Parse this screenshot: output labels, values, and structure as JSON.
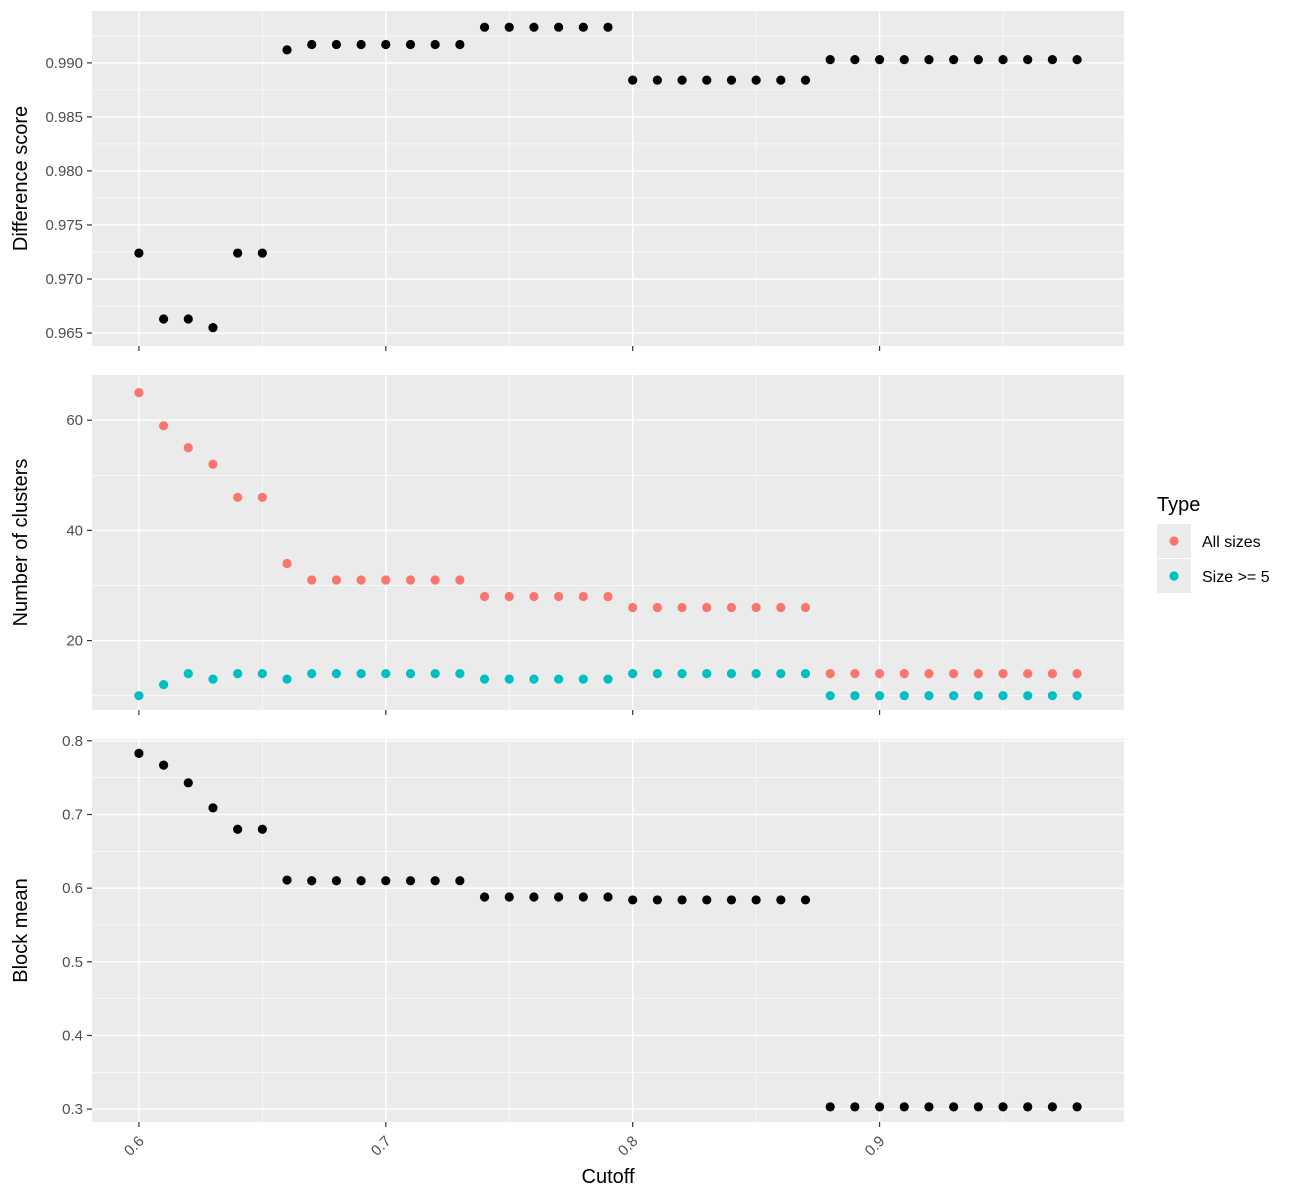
{
  "chart_data": {
    "type": "scatter",
    "x_label": "Cutoff",
    "x_ticks": [
      "0.6",
      "0.7",
      "0.8",
      "0.9"
    ],
    "xlim": [
      0.581,
      0.999
    ],
    "legend": {
      "title": "Type",
      "placement": "right",
      "entries": [
        {
          "label": "All sizes",
          "color": "#F8766D"
        },
        {
          "label": "Size >= 5",
          "color": "#00BFC4"
        }
      ]
    },
    "panels": [
      {
        "ylabel": "Difference score",
        "ylim": [
          0.9638,
          0.9948
        ],
        "y_ticks": [
          0.965,
          0.97,
          0.975,
          0.98,
          0.985,
          0.99
        ],
        "y_tick_labels": [
          "0.965",
          "0.970",
          "0.975",
          "0.980",
          "0.985",
          "0.990"
        ],
        "series": [
          {
            "color": "#000000",
            "x": [
              0.6,
              0.61,
              0.62,
              0.63,
              0.64,
              0.65,
              0.66,
              0.67,
              0.68,
              0.69,
              0.7,
              0.71,
              0.72,
              0.73,
              0.74,
              0.75,
              0.76,
              0.77,
              0.78,
              0.79,
              0.8,
              0.81,
              0.82,
              0.83,
              0.84,
              0.85,
              0.86,
              0.87,
              0.88,
              0.89,
              0.9,
              0.91,
              0.92,
              0.93,
              0.94,
              0.95,
              0.96,
              0.97,
              0.98
            ],
            "y": [
              0.9724,
              0.9663,
              0.9663,
              0.9655,
              0.9724,
              0.9724,
              0.9912,
              0.9917,
              0.9917,
              0.9917,
              0.9917,
              0.9917,
              0.9917,
              0.9917,
              0.9933,
              0.9933,
              0.9933,
              0.9933,
              0.9933,
              0.9933,
              0.9884,
              0.9884,
              0.9884,
              0.9884,
              0.9884,
              0.9884,
              0.9884,
              0.9884,
              0.9903,
              0.9903,
              0.9903,
              0.9903,
              0.9903,
              0.9903,
              0.9903,
              0.9903,
              0.9903,
              0.9903,
              0.9903
            ]
          }
        ]
      },
      {
        "ylabel": "Number of clusters",
        "ylim": [
          7.4,
          68.2
        ],
        "y_ticks": [
          20,
          40,
          60
        ],
        "y_tick_labels": [
          "20",
          "40",
          "60"
        ],
        "series": [
          {
            "name": "All sizes",
            "color": "#F8766D",
            "x": [
              0.6,
              0.61,
              0.62,
              0.63,
              0.64,
              0.65,
              0.66,
              0.67,
              0.68,
              0.69,
              0.7,
              0.71,
              0.72,
              0.73,
              0.74,
              0.75,
              0.76,
              0.77,
              0.78,
              0.79,
              0.8,
              0.81,
              0.82,
              0.83,
              0.84,
              0.85,
              0.86,
              0.87,
              0.88,
              0.89,
              0.9,
              0.91,
              0.92,
              0.93,
              0.94,
              0.95,
              0.96,
              0.97,
              0.98
            ],
            "y": [
              65,
              59,
              55,
              52,
              46,
              46,
              34,
              31,
              31,
              31,
              31,
              31,
              31,
              31,
              28,
              28,
              28,
              28,
              28,
              28,
              26,
              26,
              26,
              26,
              26,
              26,
              26,
              26,
              14,
              14,
              14,
              14,
              14,
              14,
              14,
              14,
              14,
              14,
              14
            ]
          },
          {
            "name": "Size >= 5",
            "color": "#00BFC4",
            "x": [
              0.6,
              0.61,
              0.62,
              0.63,
              0.64,
              0.65,
              0.66,
              0.67,
              0.68,
              0.69,
              0.7,
              0.71,
              0.72,
              0.73,
              0.74,
              0.75,
              0.76,
              0.77,
              0.78,
              0.79,
              0.8,
              0.81,
              0.82,
              0.83,
              0.84,
              0.85,
              0.86,
              0.87,
              0.88,
              0.89,
              0.9,
              0.91,
              0.92,
              0.93,
              0.94,
              0.95,
              0.96,
              0.97,
              0.98
            ],
            "y": [
              10,
              12,
              14,
              13,
              14,
              14,
              13,
              14,
              14,
              14,
              14,
              14,
              14,
              14,
              13,
              13,
              13,
              13,
              13,
              13,
              14,
              14,
              14,
              14,
              14,
              14,
              14,
              14,
              10,
              10,
              10,
              10,
              10,
              10,
              10,
              10,
              10,
              10,
              10
            ]
          }
        ]
      },
      {
        "ylabel": "Block mean",
        "ylim": [
          0.2825,
          0.8025
        ],
        "y_ticks": [
          0.3,
          0.4,
          0.5,
          0.6,
          0.7,
          0.8
        ],
        "y_tick_labels": [
          "0.3",
          "0.4",
          "0.5",
          "0.6",
          "0.7",
          "0.8"
        ],
        "series": [
          {
            "color": "#000000",
            "x": [
              0.6,
              0.61,
              0.62,
              0.63,
              0.64,
              0.65,
              0.66,
              0.67,
              0.68,
              0.69,
              0.7,
              0.71,
              0.72,
              0.73,
              0.74,
              0.75,
              0.76,
              0.77,
              0.78,
              0.79,
              0.8,
              0.81,
              0.82,
              0.83,
              0.84,
              0.85,
              0.86,
              0.87,
              0.88,
              0.89,
              0.9,
              0.91,
              0.92,
              0.93,
              0.94,
              0.95,
              0.96,
              0.97,
              0.98
            ],
            "y": [
              0.783,
              0.767,
              0.743,
              0.709,
              0.68,
              0.68,
              0.611,
              0.61,
              0.61,
              0.61,
              0.61,
              0.61,
              0.61,
              0.61,
              0.588,
              0.588,
              0.588,
              0.588,
              0.588,
              0.588,
              0.584,
              0.584,
              0.584,
              0.584,
              0.584,
              0.584,
              0.584,
              0.584,
              0.303,
              0.303,
              0.303,
              0.303,
              0.303,
              0.303,
              0.303,
              0.303,
              0.303,
              0.303,
              0.303
            ]
          }
        ]
      }
    ]
  }
}
